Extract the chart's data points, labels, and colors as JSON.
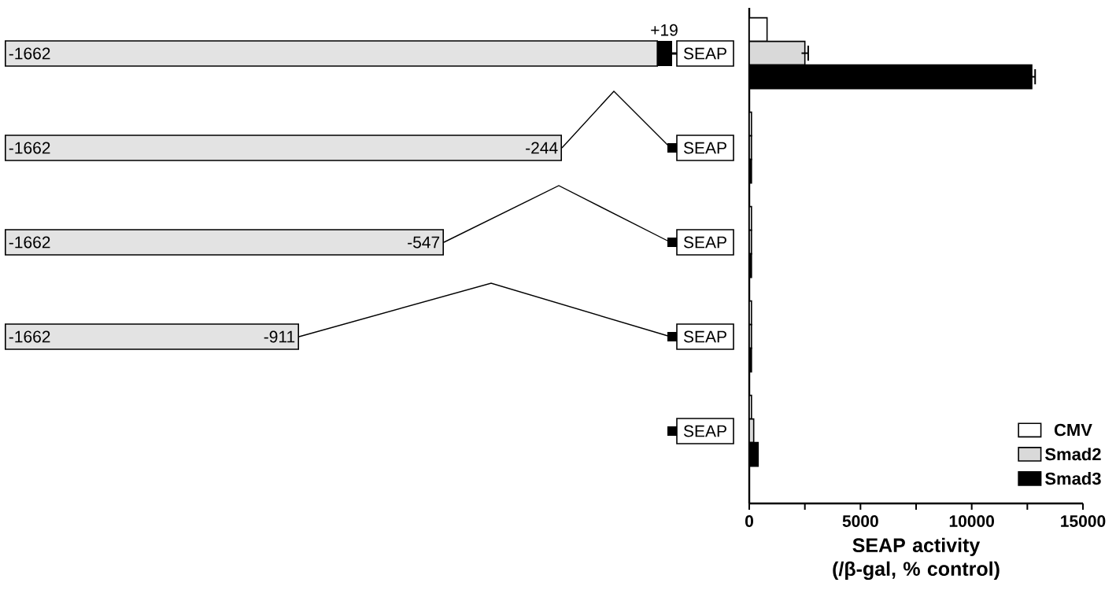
{
  "chart_data": {
    "type": "bar",
    "orientation": "horizontal",
    "xlabel": "SEAP activity (/β-gal, % control)",
    "categories": [
      null,
      null,
      null,
      null,
      null
    ],
    "series": [
      {
        "name": "CMV",
        "color": "#ffffff",
        "values": [
          800,
          100,
          100,
          100,
          100
        ]
      },
      {
        "name": "Smad2",
        "color": "#d9d9d9",
        "values": [
          2500,
          100,
          100,
          100,
          200
        ],
        "errors": [
          150,
          null,
          null,
          null,
          null
        ]
      },
      {
        "name": "Smad3",
        "color": "#000000",
        "values": [
          12700,
          100,
          100,
          100,
          400
        ],
        "errors": [
          150,
          null,
          null,
          null,
          null
        ]
      }
    ],
    "xlim": [
      0,
      15000
    ],
    "xticks": [
      0,
      {
        "value": 2500,
        "label": null
      },
      5000,
      {
        "value": 7500,
        "label": null
      },
      10000,
      {
        "value": 12500,
        "label": null
      },
      15000
    ],
    "tick_labels": "x",
    "legend": "bottom right",
    "grid": false,
    "annotations": [
      "+19",
      "-1662",
      "-1662",
      "-1662",
      "-1662",
      "-244",
      "-547",
      "-911",
      "SEAP",
      "SEAP",
      "SEAP",
      "SEAP",
      "SEAP"
    ]
  }
}
